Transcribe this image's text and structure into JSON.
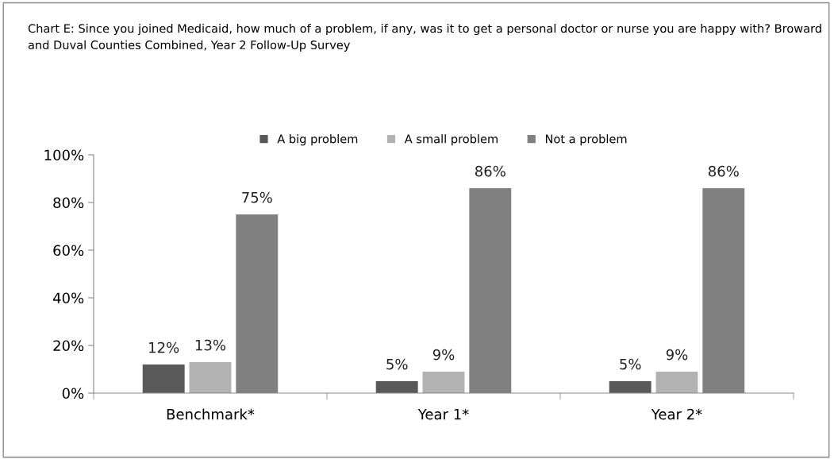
{
  "chart_data": {
    "type": "bar",
    "title": "Chart E: Since you joined Medicaid, how much of a problem, if any, was it to get a personal doctor or nurse you are happy with? Broward and Duval Counties Combined, Year 2 Follow-Up Survey",
    "categories": [
      "Benchmark*",
      "Year 1*",
      "Year 2*"
    ],
    "series": [
      {
        "name": "A big problem",
        "color": "#595959",
        "values": [
          12,
          5,
          5
        ],
        "value_labels": [
          "12%",
          "5%",
          "5%"
        ]
      },
      {
        "name": "A small problem",
        "color": "#b2b2b2",
        "values": [
          13,
          9,
          9
        ],
        "value_labels": [
          "13%",
          "9%",
          "9%"
        ]
      },
      {
        "name": "Not a problem",
        "color": "#808080",
        "values": [
          75,
          86,
          86
        ],
        "value_labels": [
          "75%",
          "86%",
          "86%"
        ]
      }
    ],
    "ylim": [
      0,
      100
    ],
    "yticks": [
      {
        "value": 0,
        "label": "0%"
      },
      {
        "value": 20,
        "label": "20%"
      },
      {
        "value": 40,
        "label": "40%"
      },
      {
        "value": 60,
        "label": "60%"
      },
      {
        "value": 80,
        "label": "80%"
      },
      {
        "value": 100,
        "label": "100%"
      }
    ],
    "grid": false,
    "legend": "top"
  }
}
